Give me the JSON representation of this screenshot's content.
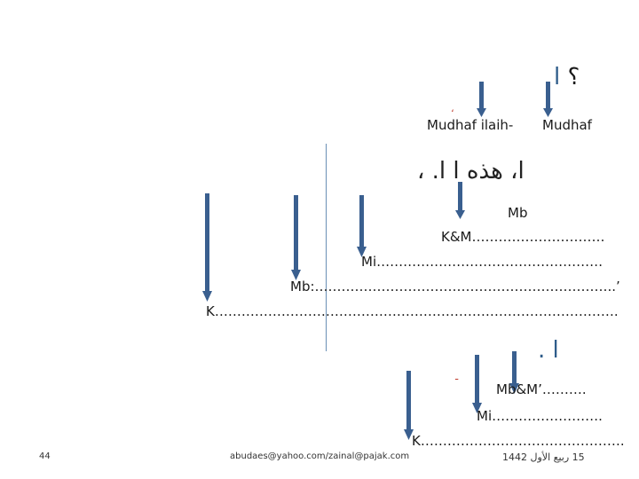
{
  "slide": {
    "top_arabic": "؟ ا",
    "mudhaf_ilaih_label": "Mudhaf ilaih-",
    "mudhaf_label": "Mudhaf",
    "arabic_sentence": "ا، هذه ا ا. ،",
    "mb_label": "Mb",
    "km_line": "K&M…………………………",
    "mi_line": "Mi……………………………………………",
    "mb_line": "Mb:…………………………………………………………..’",
    "k_line": "K……………………………………………………………………………….",
    "arabic_second": "ا .",
    "mbm_line": "Mb&M’……….",
    "mi_line2": "Mi…………………….",
    "k_line2": "K……………………………………….",
    "red_mark1": "،",
    "red_mark2": "ـ"
  },
  "footer": {
    "page_number": "44",
    "email": "abudaes@yahoo.com/zainal@pajak.com",
    "date": "15 ربيع الأول 1442"
  },
  "colors": {
    "arrow": "#3a5f8f",
    "accent_arabic": "#2e5c8a",
    "vertical_line": "#6a8fb5",
    "red": "#c0392b"
  }
}
